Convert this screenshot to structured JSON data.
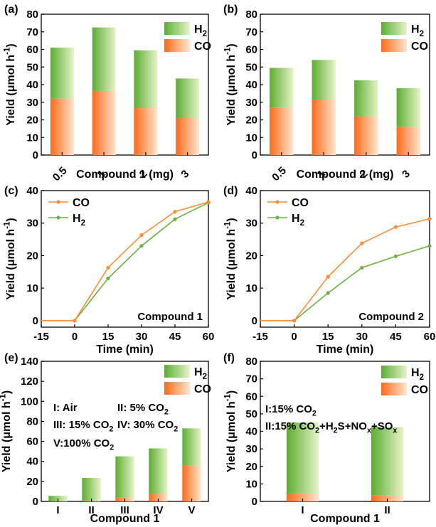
{
  "colors": {
    "co_dark": "#ff6a1a",
    "co_light": "#ffe6cf",
    "h2_dark": "#5cad32",
    "h2_light": "#e6f4c8",
    "line_co": "#ff8c33",
    "line_h2": "#6ab33c"
  },
  "chart_data": [
    {
      "panel": "(a)",
      "type": "bar",
      "stacked": true,
      "xlabel": "Compound 1 (mg)",
      "ylabel": "Yield (μmol h⁻¹)",
      "ylim": [
        0,
        80
      ],
      "yticks": [
        "0",
        "10",
        "20",
        "30",
        "40",
        "50",
        "60",
        "70",
        "80"
      ],
      "categories": [
        "0.5",
        "1",
        "2",
        "3"
      ],
      "series": [
        {
          "name": "CO",
          "values": [
            32,
            36.5,
            26.5,
            21
          ]
        },
        {
          "name": "H2",
          "values": [
            29,
            36,
            33,
            22.5
          ]
        }
      ],
      "legend": [
        "H2",
        "CO"
      ],
      "legend_placement": "top-right",
      "grid": false
    },
    {
      "panel": "(b)",
      "type": "bar",
      "stacked": true,
      "xlabel": "Compound 2 (mg)",
      "ylabel": "Yield (μmol h⁻¹)",
      "ylim": [
        0,
        80
      ],
      "yticks": [
        "0",
        "10",
        "20",
        "30",
        "40",
        "50",
        "60",
        "70",
        "80"
      ],
      "categories": [
        "0.5",
        "1",
        "2",
        "3"
      ],
      "series": [
        {
          "name": "CO",
          "values": [
            27,
            31.5,
            22,
            16
          ]
        },
        {
          "name": "H2",
          "values": [
            22.5,
            22.5,
            20.5,
            22
          ]
        }
      ],
      "legend": [
        "H2",
        "CO"
      ],
      "legend_placement": "top-right",
      "grid": false
    },
    {
      "panel": "(c)",
      "type": "line",
      "xlabel": "Time (min)",
      "ylabel": "Yield (μmol h⁻¹)",
      "xlim": [
        -15,
        60
      ],
      "ylim": [
        -2,
        40
      ],
      "xticks": [
        "-15",
        "0",
        "15",
        "30",
        "45",
        "60"
      ],
      "yticks": [
        "0",
        "10",
        "20",
        "30",
        "40"
      ],
      "x": [
        -15,
        0,
        15,
        30,
        45,
        60
      ],
      "series": [
        {
          "name": "CO",
          "values": [
            0,
            0,
            16.3,
            26.3,
            33.5,
            36.5
          ]
        },
        {
          "name": "H2",
          "values": [
            0,
            0,
            13,
            23,
            31.2,
            36.3
          ]
        }
      ],
      "annotation": "Compound 1",
      "legend_placement": "top-left",
      "grid": false
    },
    {
      "panel": "(d)",
      "type": "line",
      "xlabel": "Time (min)",
      "ylabel": "Yield (μmol h⁻¹)",
      "xlim": [
        -15,
        60
      ],
      "ylim": [
        -2,
        40
      ],
      "xticks": [
        "-15",
        "0",
        "15",
        "30",
        "45",
        "60"
      ],
      "yticks": [
        "0",
        "10",
        "20",
        "30",
        "40"
      ],
      "x": [
        -15,
        0,
        15,
        30,
        45,
        60
      ],
      "series": [
        {
          "name": "CO",
          "values": [
            0,
            0,
            13.5,
            23.8,
            28.8,
            31.3
          ]
        },
        {
          "name": "H2",
          "values": [
            0,
            0,
            8.5,
            16.3,
            19.8,
            23
          ]
        }
      ],
      "annotation": "Compound 2",
      "legend_placement": "top-left",
      "grid": false
    },
    {
      "panel": "(e)",
      "type": "bar",
      "stacked": true,
      "xlabel": "Compound 1",
      "ylabel": "Yield (μmol h⁻¹)",
      "ylim": [
        0,
        140
      ],
      "yticks": [
        "0",
        "20",
        "40",
        "60",
        "80",
        "100",
        "120",
        "140"
      ],
      "categories": [
        "I",
        "II",
        "III",
        "IV",
        "V"
      ],
      "series": [
        {
          "name": "CO",
          "values": [
            0,
            1,
            4,
            7.5,
            36
          ]
        },
        {
          "name": "H2",
          "values": [
            5.5,
            22.5,
            41,
            45.5,
            37
          ]
        }
      ],
      "notes": [
        "I: Air",
        "II: 5% CO2",
        "III: 15% CO2",
        "IV: 30% CO2",
        "V:100% CO2"
      ],
      "legend": [
        "H2",
        "CO"
      ],
      "legend_placement": "top-right",
      "grid": false
    },
    {
      "panel": "(f)",
      "type": "bar",
      "stacked": true,
      "xlabel": "Compound 1",
      "ylabel": "Yield (μmol h⁻¹)",
      "ylim": [
        0,
        80
      ],
      "yticks": [
        "0",
        "10",
        "20",
        "30",
        "40",
        "50",
        "60",
        "70",
        "80"
      ],
      "categories": [
        "I",
        "II"
      ],
      "series": [
        {
          "name": "CO",
          "values": [
            4.5,
            3.5
          ]
        },
        {
          "name": "H2",
          "values": [
            40.5,
            39
          ]
        }
      ],
      "notes": [
        "I:15% CO2",
        "II:15% CO2+H2S+NOx+SOx"
      ],
      "legend": [
        "H2",
        "CO"
      ],
      "legend_placement": "top-right",
      "grid": false
    }
  ]
}
